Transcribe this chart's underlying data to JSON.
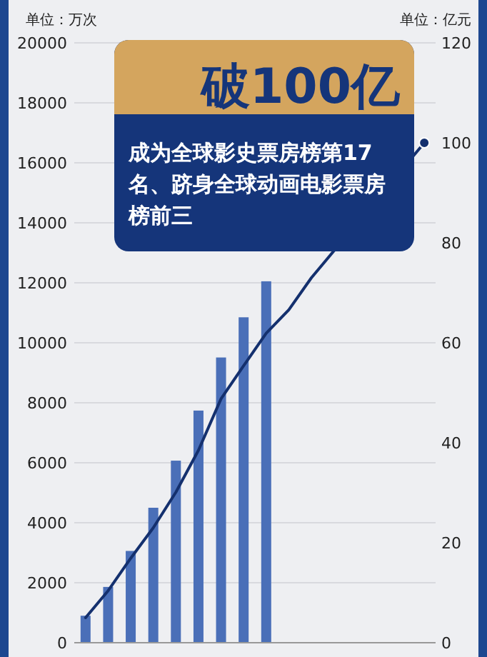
{
  "chart_data": {
    "type": "bar",
    "title": "破100亿",
    "subtitle": "成为全球影史票房榜第17名、跻身全球动画电影票房榜前三",
    "ylabel": "单位：万次",
    "y2label": "单位：亿元",
    "categories": [
      null,
      null,
      null,
      null,
      null,
      null,
      null,
      null,
      null,
      null,
      null,
      null,
      null,
      null,
      null,
      null
    ],
    "series": [
      {
        "type": "bar",
        "color": "#4a6fb8",
        "values": [
          900,
          1860,
          3060,
          4500,
          6070,
          7740,
          9510,
          10850,
          12050,
          null,
          null,
          null,
          null,
          null,
          null,
          null
        ]
      },
      {
        "type": "line",
        "axis": "y2",
        "color": "#14306e",
        "values": [
          5.0,
          10.4,
          16.9,
          23.0,
          30.1,
          38.5,
          48.8,
          55.4,
          61.9,
          66.6,
          73,
          null,
          null,
          null,
          null,
          100
        ]
      }
    ],
    "ylim": [
      0,
      20000
    ],
    "yticks": [
      0,
      2000,
      4000,
      6000,
      8000,
      10000,
      12000,
      14000,
      16000,
      18000,
      20000
    ],
    "y2lim": [
      0,
      120
    ],
    "y2ticks": [
      0,
      20,
      40,
      60,
      80,
      100,
      120
    ],
    "grid": "y",
    "marker": "none",
    "line_style": "solid"
  }
}
